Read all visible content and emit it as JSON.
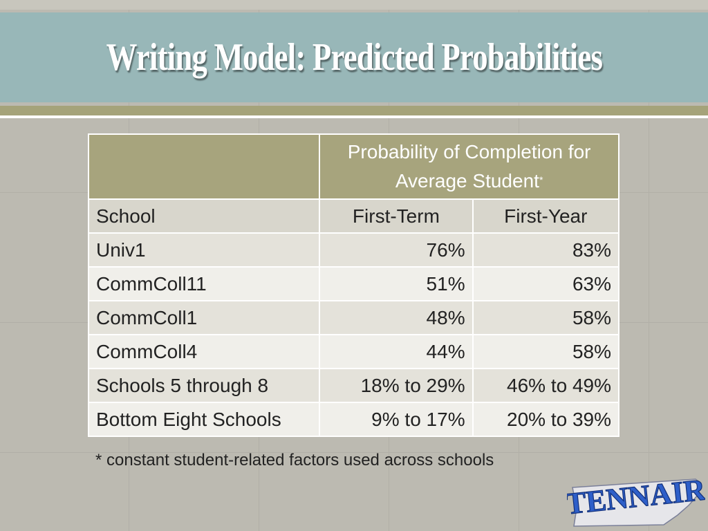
{
  "slide": {
    "title": "Writing Model: Predicted Probabilities",
    "footnote": "* constant student-related factors used across schools",
    "logo_text": "TENNAIR"
  },
  "table": {
    "group_header": "Probability of Completion for Average Student",
    "group_header_mark": "*",
    "columns": [
      "School",
      "First-Term",
      "First-Year"
    ],
    "rows": [
      {
        "school": "Univ1",
        "first_term": "76%",
        "first_year": "83%"
      },
      {
        "school": "CommColl11",
        "first_term": "51%",
        "first_year": "63%"
      },
      {
        "school": "CommColl1",
        "first_term": "48%",
        "first_year": "58%"
      },
      {
        "school": "CommColl4",
        "first_term": "44%",
        "first_year": "58%"
      },
      {
        "school": "Schools 5 through 8",
        "first_term": "18% to 29%",
        "first_year": "46% to 49%"
      },
      {
        "school": "Bottom Eight Schools",
        "first_term": "9% to 17%",
        "first_year": "20% to 39%"
      }
    ]
  },
  "colors": {
    "title_band": "#98b7b8",
    "header_olive": "#a7a47d",
    "logo_blue": "#2e5fc9"
  }
}
